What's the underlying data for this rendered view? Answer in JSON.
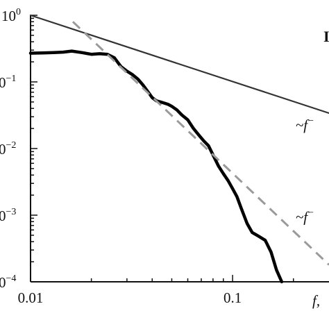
{
  "chart_data": {
    "type": "line",
    "x_scale": "log",
    "y_scale": "log",
    "xlim": [
      0.01,
      0.3
    ],
    "ylim": [
      0.0001,
      1
    ],
    "grid": false,
    "legend": "none",
    "x_tick_labels": [
      "0.01",
      "0.1"
    ],
    "x_tick_values": [
      0.01,
      0.1
    ],
    "y_tick_labels": [
      {
        "base": "10",
        "exp": "0"
      },
      {
        "base": "0",
        "exp": "−1"
      },
      {
        "base": "0",
        "exp": "−2"
      },
      {
        "base": "0",
        "exp": "−3"
      },
      {
        "base": "0",
        "exp": "−4"
      }
    ],
    "y_tick_values": [
      1,
      0.1,
      0.01,
      0.001,
      0.0001
    ],
    "xlabel": "f,",
    "panel_label": "I",
    "series": [
      {
        "style": "solid-thick",
        "color": "#000000",
        "x": [
          0.01,
          0.0115,
          0.013,
          0.0145,
          0.016,
          0.018,
          0.02,
          0.022,
          0.024,
          0.026,
          0.028,
          0.03,
          0.032,
          0.034,
          0.036,
          0.038,
          0.04,
          0.042,
          0.044,
          0.046,
          0.048,
          0.05,
          0.053,
          0.056,
          0.06,
          0.064,
          0.068,
          0.072,
          0.076,
          0.08,
          0.085,
          0.09,
          0.095,
          0.1,
          0.105,
          0.11,
          0.118,
          0.125,
          0.135,
          0.145,
          0.155,
          0.165,
          0.175
        ],
        "y": [
          0.27,
          0.272,
          0.275,
          0.28,
          0.29,
          0.275,
          0.26,
          0.265,
          0.26,
          0.23,
          0.17,
          0.145,
          0.128,
          0.11,
          0.09,
          0.072,
          0.058,
          0.052,
          0.05,
          0.048,
          0.046,
          0.043,
          0.038,
          0.032,
          0.027,
          0.02,
          0.016,
          0.013,
          0.011,
          0.008,
          0.0055,
          0.0042,
          0.0033,
          0.0025,
          0.0019,
          0.0013,
          0.00075,
          0.00055,
          0.00048,
          0.00042,
          0.00028,
          0.00015,
          0.0001
        ]
      },
      {
        "style": "solid-thin",
        "color": "#333333",
        "x": [
          0.01,
          0.3
        ],
        "y": [
          1.0,
          0.034
        ]
      },
      {
        "style": "dashed",
        "color": "#9a9a9a",
        "x": [
          0.0162,
          0.3
        ],
        "y": [
          0.8,
          0.00018
        ]
      }
    ],
    "annotations": [
      {
        "text": "~f",
        "exp": "−",
        "x": 0.205,
        "y": 0.019
      },
      {
        "text": "~f",
        "exp": "−",
        "x": 0.205,
        "y": 0.0008
      }
    ]
  }
}
